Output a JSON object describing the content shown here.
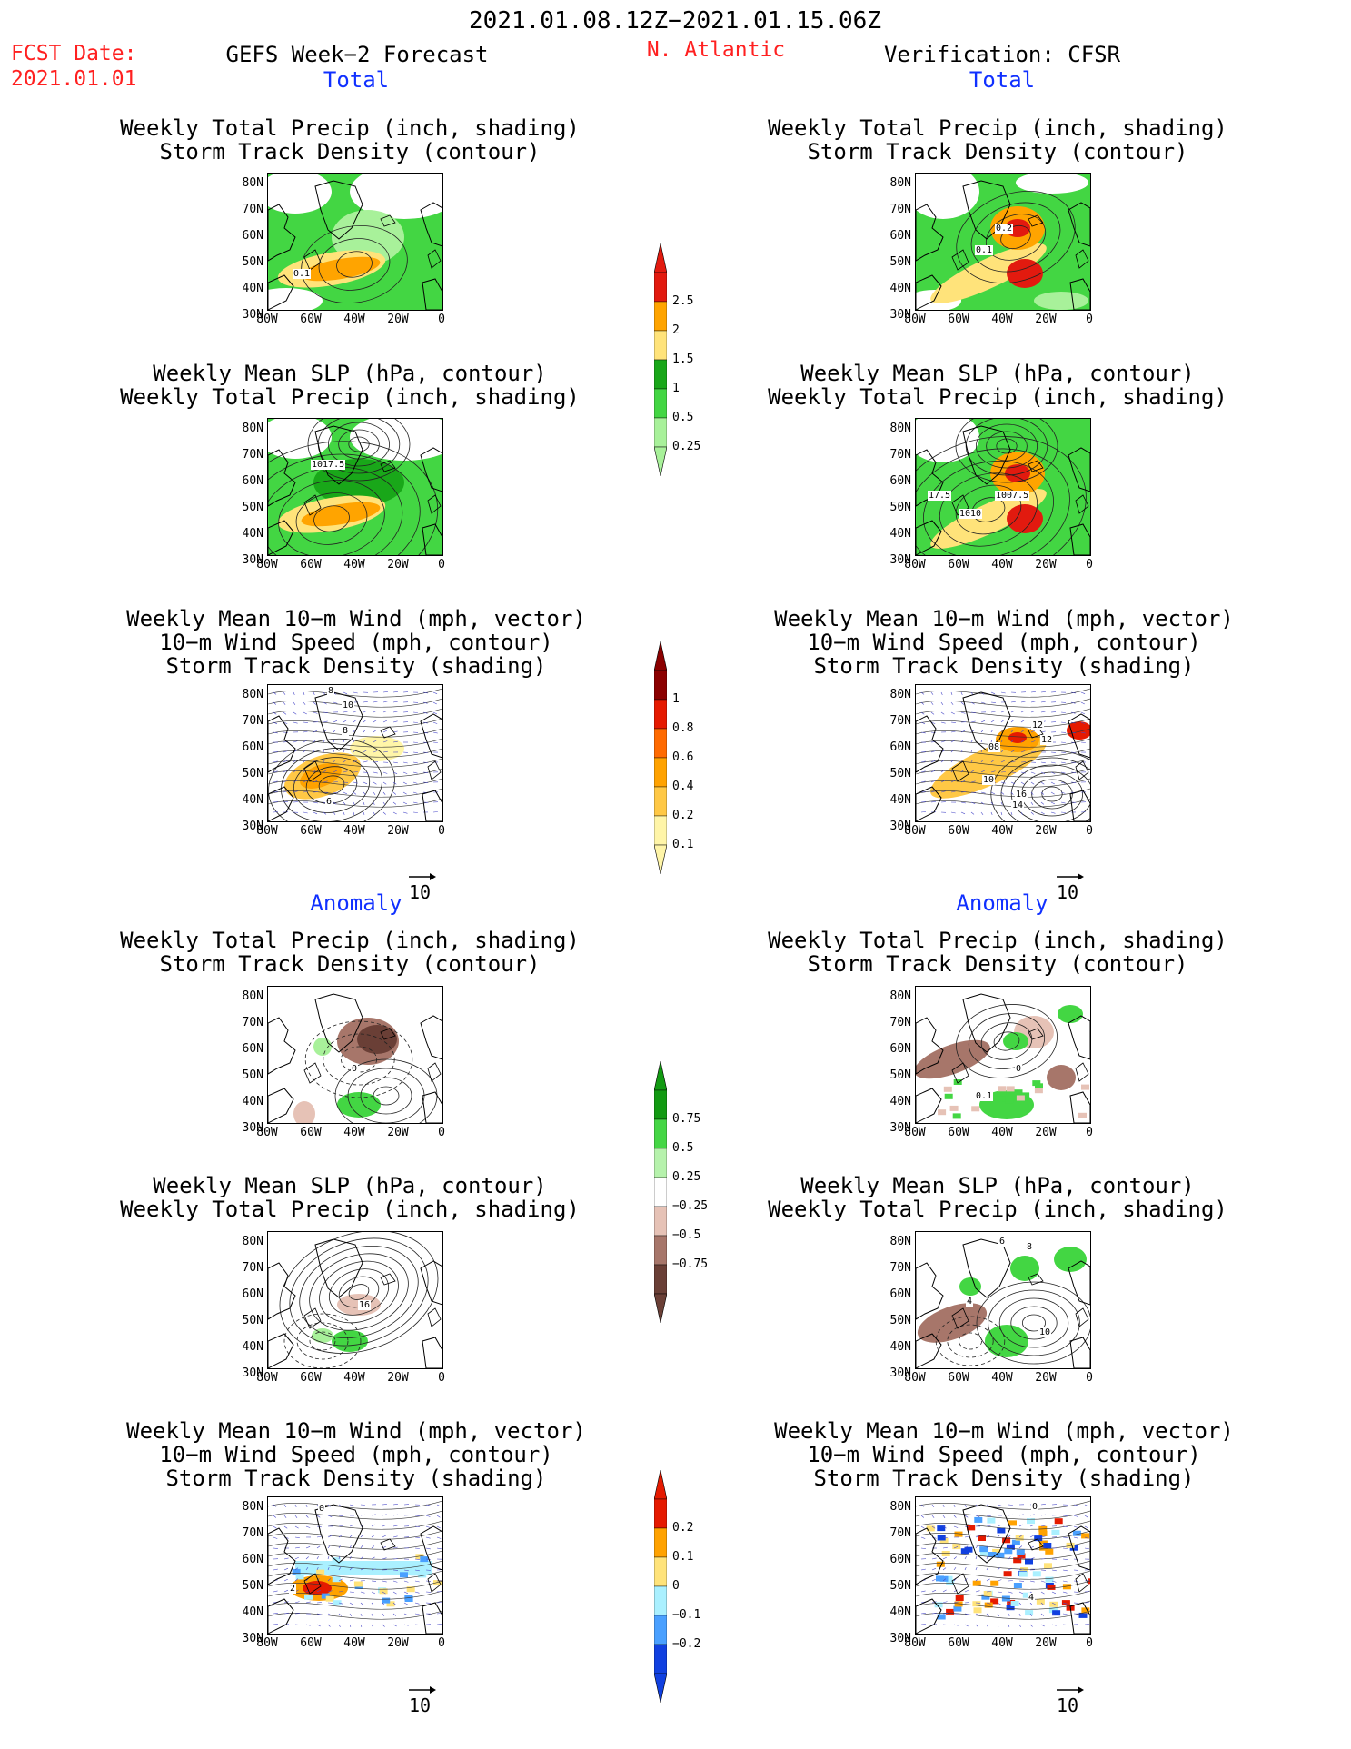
{
  "header": {
    "period": "2021.01.08.12Z−2021.01.15.06Z",
    "fcst_label": "FCST Date:",
    "fcst_date": "2021.01.01",
    "region": "N. Atlantic",
    "left_title": "GEFS Week−2 Forecast",
    "right_title": "Verification: CFSR"
  },
  "sections": {
    "total": "Total",
    "anomaly": "Anomaly"
  },
  "panel_titles": {
    "precip_track": [
      "Weekly Total Precip (inch, shading)",
      "Storm Track Density (contour)"
    ],
    "slp_precip": [
      "Weekly Mean SLP (hPa, contour)",
      "Weekly Total Precip (inch, shading)"
    ],
    "wind_track": [
      "Weekly Mean 10−m Wind (mph, vector)",
      "10−m Wind Speed (mph, contour)",
      "Storm Track Density (shading)"
    ]
  },
  "axes": {
    "lat_ticks": [
      "80N",
      "70N",
      "60N",
      "50N",
      "40N",
      "30N"
    ],
    "lon_ticks": [
      "80W",
      "60W",
      "40W",
      "20W",
      "0"
    ]
  },
  "vector_reference": "10",
  "contour_labels": {
    "fc_total_precip": [
      "0.1"
    ],
    "ob_total_precip": [
      "0.2",
      "0.1"
    ],
    "fc_total_slp": [
      "1017.5"
    ],
    "ob_total_slp": [
      "17.5",
      "1007.5",
      "1010"
    ],
    "fc_total_wind": [
      "8",
      "10",
      "8",
      "6"
    ],
    "ob_total_wind": [
      "12",
      "12",
      "08",
      "10",
      "16",
      "14"
    ],
    "fc_anom_precip": [
      "0"
    ],
    "ob_anom_precip": [
      "0",
      "0.1"
    ],
    "fc_anom_slp": [
      "16"
    ],
    "ob_anom_slp": [
      "6",
      "8",
      "4",
      "10"
    ],
    "fc_anom_wind": [
      "0",
      "2"
    ],
    "ob_anom_wind": [
      "0",
      "4"
    ]
  },
  "colorbars": {
    "total_precip": {
      "labels": [
        "2.5",
        "2",
        "1.5",
        "1",
        "0.5",
        "0.25"
      ],
      "colors": [
        "#e21a0f",
        "#ffa400",
        "#ffe37a",
        "#19a719",
        "#43d643",
        "#a8f19a"
      ]
    },
    "total_track": {
      "labels": [
        "1",
        "0.8",
        "0.6",
        "0.4",
        "0.2",
        "0.1"
      ],
      "colors": [
        "#8b0000",
        "#e51a00",
        "#ff6a00",
        "#ffa200",
        "#ffc845",
        "#fff5a8"
      ]
    },
    "anom_precip": {
      "labels": [
        "0.75",
        "0.5",
        "0.25",
        "−0.25",
        "−0.5",
        "−0.75"
      ],
      "colors": [
        "#129a12",
        "#45d645",
        "#b6f2ac",
        "#ffffff",
        "#e6c2b6",
        "#a7766a",
        "#6a3f36"
      ]
    },
    "anom_track": {
      "labels": [
        "0.2",
        "0.1",
        "0",
        "−0.1",
        "−0.2"
      ],
      "colors": [
        "#e51a00",
        "#ffa200",
        "#ffe37a",
        "#aaf0ff",
        "#4aa0ff",
        "#1040e0"
      ]
    }
  }
}
